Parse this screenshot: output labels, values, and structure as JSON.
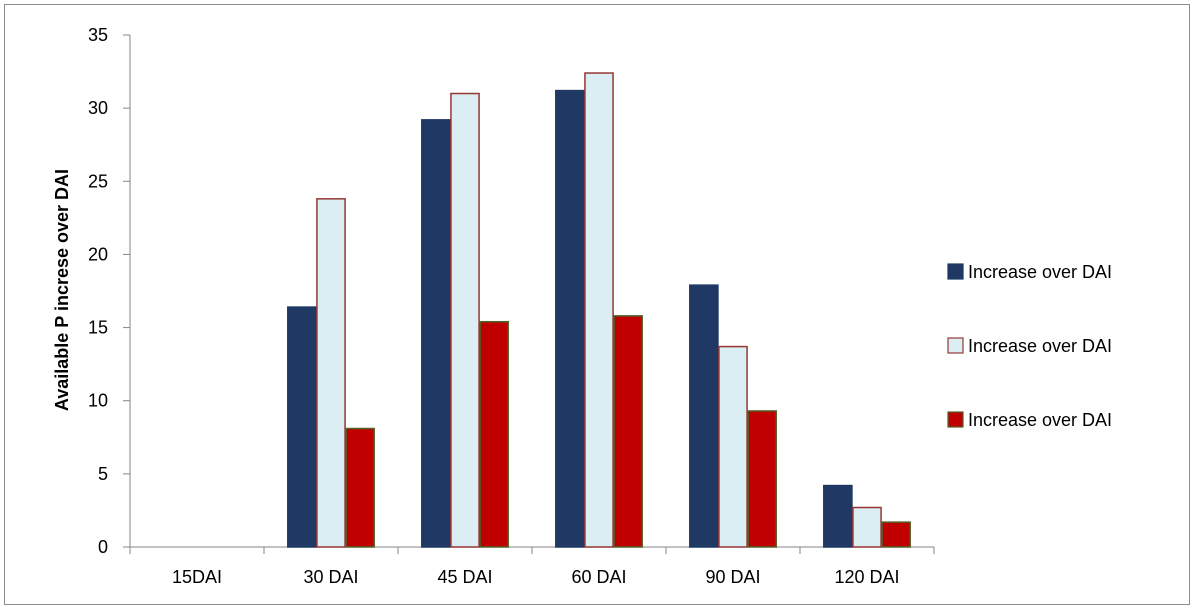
{
  "chart_data": {
    "type": "bar",
    "title": "",
    "xlabel": "",
    "ylabel": "Available P increse over DAI",
    "ylim": [
      0,
      35
    ],
    "yticks": [
      0,
      5,
      10,
      15,
      20,
      25,
      30,
      35
    ],
    "categories": [
      "15DAI",
      "30 DAI",
      "45 DAI",
      "60 DAI",
      "90 DAI",
      "120 DAI"
    ],
    "series": [
      {
        "name": "Increase over DAI",
        "values": [
          0,
          16.4,
          29.2,
          31.2,
          17.9,
          4.2
        ],
        "fill": "#1f3864",
        "stroke": "#1f3864"
      },
      {
        "name": "Increase over DAI",
        "values": [
          0,
          23.8,
          31.0,
          32.4,
          13.7,
          2.7
        ],
        "fill": "#dbeef4",
        "stroke": "#953735"
      },
      {
        "name": "Increase over DAI",
        "values": [
          0,
          8.1,
          15.4,
          15.8,
          9.3,
          1.7
        ],
        "fill": "#c00000",
        "stroke": "#4f6228"
      }
    ],
    "grid": false,
    "legend_position": "right"
  }
}
